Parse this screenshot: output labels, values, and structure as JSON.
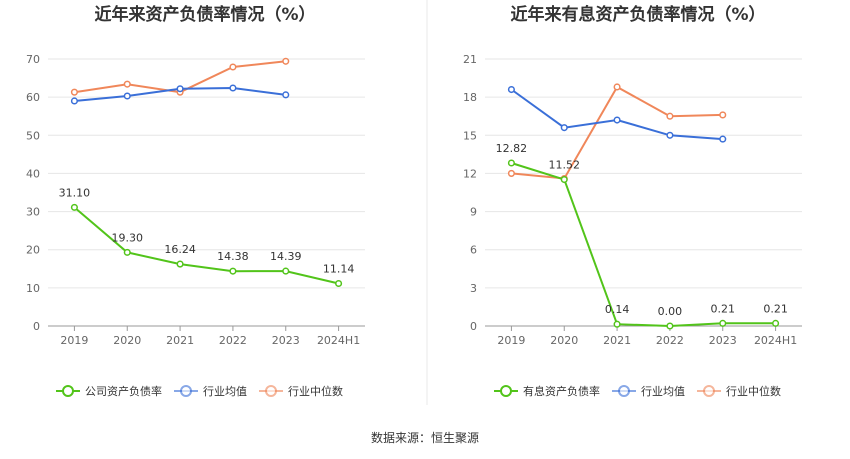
{
  "source_text": "数据来源：恒生聚源",
  "chart_data": [
    {
      "type": "line",
      "title": "近年来资产负债率情况（%）",
      "categories": [
        "2019",
        "2020",
        "2021",
        "2022",
        "2023",
        "2024H1"
      ],
      "ylim": [
        0,
        70
      ],
      "yticks": [
        "0",
        "10",
        "20",
        "30",
        "40",
        "50",
        "60",
        "70"
      ],
      "grid": true,
      "legend_position": "bottom",
      "series": [
        {
          "name": "公司资产负债率",
          "color": "#52c41a",
          "labels": true,
          "values": [
            31.1,
            19.3,
            16.24,
            14.38,
            14.39,
            11.14
          ],
          "value_labels": [
            "31.10",
            "19.30",
            "16.24",
            "14.38",
            "14.39",
            "11.14"
          ]
        },
        {
          "name": "行业均值",
          "color": "#3a6fd8",
          "labels": false,
          "values": [
            59.0,
            60.3,
            62.2,
            62.4,
            60.6,
            null
          ]
        },
        {
          "name": "行业中位数",
          "color": "#f0875a",
          "labels": false,
          "values": [
            61.3,
            63.4,
            61.3,
            67.9,
            69.4,
            null
          ]
        }
      ]
    },
    {
      "type": "line",
      "title": "近年来有息资产负债率情况（%）",
      "categories": [
        "2019",
        "2020",
        "2021",
        "2022",
        "2023",
        "2024H1"
      ],
      "ylim": [
        0,
        21
      ],
      "yticks": [
        "0",
        "3",
        "6",
        "9",
        "12",
        "15",
        "18",
        "21"
      ],
      "grid": true,
      "legend_position": "bottom",
      "series": [
        {
          "name": "有息资产负债率",
          "color": "#52c41a",
          "labels": true,
          "values": [
            12.82,
            11.52,
            0.14,
            0.0,
            0.21,
            0.21
          ],
          "value_labels": [
            "12.82",
            "11.52",
            "0.14",
            "0.00",
            "0.21",
            "0.21"
          ]
        },
        {
          "name": "行业均值",
          "color": "#3a6fd8",
          "labels": false,
          "values": [
            18.6,
            15.6,
            16.2,
            15.0,
            14.7,
            null
          ]
        },
        {
          "name": "行业中位数",
          "color": "#f0875a",
          "labels": false,
          "values": [
            12.0,
            11.6,
            18.8,
            16.5,
            16.6,
            null
          ]
        }
      ]
    }
  ]
}
